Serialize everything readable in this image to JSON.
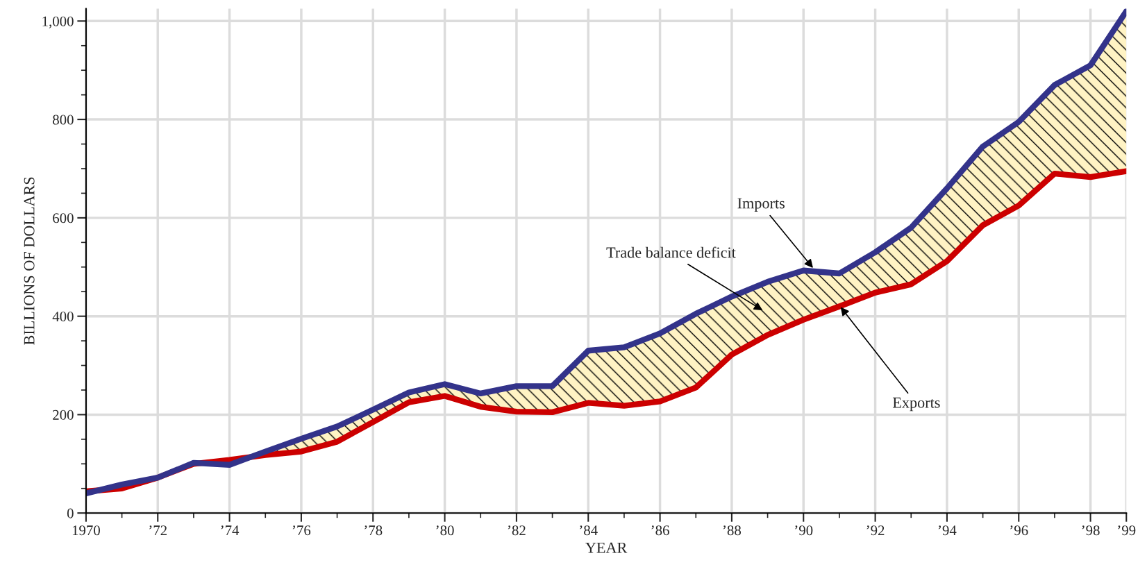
{
  "chart_data": {
    "type": "line",
    "xlabel": "YEAR",
    "ylabel": "BILLIONS OF DOLLARS",
    "x": [
      1970,
      1971,
      1972,
      1973,
      1974,
      1975,
      1976,
      1977,
      1978,
      1979,
      1980,
      1981,
      1982,
      1983,
      1984,
      1985,
      1986,
      1987,
      1988,
      1989,
      1990,
      1991,
      1992,
      1993,
      1994,
      1995,
      1996,
      1997,
      1998,
      1999
    ],
    "series": [
      {
        "color": "#33338a",
        "values": [
          40,
          58,
          72,
          102,
          98,
          125,
          151,
          176,
          210,
          245,
          262,
          243,
          258,
          258,
          330,
          337,
          365,
          405,
          440,
          470,
          493,
          487,
          530,
          580,
          660,
          745,
          795,
          870,
          910,
          1020
        ],
        "lower": [
          44,
          50,
          72,
          100,
          108,
          118,
          125,
          145,
          185,
          225,
          238,
          216,
          206,
          205,
          224,
          218,
          227,
          255,
          322,
          362,
          393,
          420,
          448,
          465,
          512,
          585,
          625,
          690,
          683,
          695
        ],
        "upper": [
          40,
          58,
          72,
          102,
          98,
          125,
          151,
          176,
          210,
          245,
          262,
          243,
          258,
          258,
          330,
          337,
          365,
          405,
          440,
          470,
          493,
          487,
          530,
          580,
          660,
          745,
          795,
          870,
          910,
          1020
        ]
      },
      {
        "color": "#cc0000",
        "values": [
          44,
          50,
          72,
          100,
          108,
          118,
          125,
          145,
          185,
          225,
          238,
          216,
          206,
          205,
          224,
          218,
          227,
          255,
          322,
          362,
          393,
          420,
          448,
          465,
          512,
          585,
          625,
          690,
          683,
          695
        ]
      }
    ],
    "xlim": [
      1970,
      1999
    ],
    "xticks": [
      {
        "value": 1970,
        "label": "1970"
      },
      {
        "value": 1972,
        "label": "’72"
      },
      {
        "value": 1974,
        "label": "’74"
      },
      {
        "value": 1976,
        "label": "’76"
      },
      {
        "value": 1978,
        "label": "’78"
      },
      {
        "value": 1980,
        "label": "’80"
      },
      {
        "value": 1982,
        "label": "’82"
      },
      {
        "value": 1984,
        "label": "’84"
      },
      {
        "value": 1986,
        "label": "’86"
      },
      {
        "value": 1988,
        "label": "’88"
      },
      {
        "value": 1990,
        "label": "’90"
      },
      {
        "value": 1992,
        "label": "’92"
      },
      {
        "value": 1994,
        "label": "’94"
      },
      {
        "value": 1996,
        "label": "’96"
      },
      {
        "value": 1998,
        "label": "’98"
      },
      {
        "value": 1999,
        "label": "’99"
      }
    ],
    "ylim": [
      0,
      1025
    ],
    "yticks": [
      0,
      200,
      400,
      600,
      800,
      {
        "value": 1000,
        "label": "1,000"
      }
    ],
    "grid": true,
    "marker": "none",
    "line_style": "solid",
    "annotations": [
      {
        "text": "Imports",
        "x": 1990.3,
        "y": 495
      },
      "Trade balance deficit",
      {
        "text": "Exports",
        "x": 1991.0,
        "y": 422
      }
    ]
  }
}
